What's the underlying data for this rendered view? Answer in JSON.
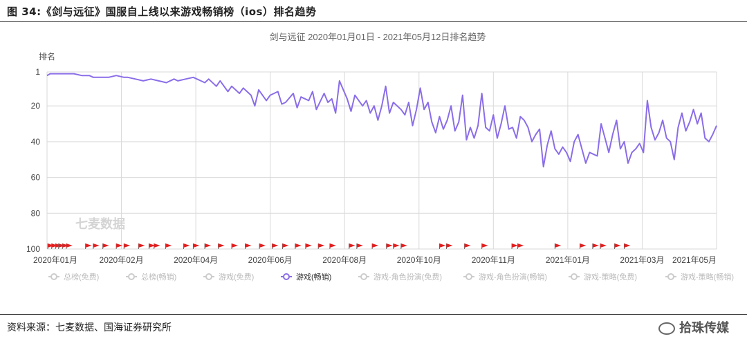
{
  "caption": "图 34:《剑与远征》国服自上线以来游戏畅销榜（ios）排名趋势",
  "source": "资料来源：七麦数据、国海证券研究所",
  "watermark": {
    "text": "拾珠传媒",
    "chart_text": "七麦数据"
  },
  "colors": {
    "series": "#8a6de9",
    "flag": "#e41e1e",
    "grid": "#d9d9d9",
    "legend_inactive": "#cccccc"
  },
  "chart_data": {
    "type": "line",
    "title": "剑与远征 2020年01月01日 - 2021年05月12日排名趋势",
    "ylabel": "排名",
    "y_reversed": true,
    "ylim": [
      1,
      100
    ],
    "y_ticks": [
      "1",
      "20",
      "40",
      "60",
      "80",
      "100"
    ],
    "x_ticks": [
      "2020年01月",
      "2020年02月",
      "2020年04月",
      "2020年06月",
      "2020年08月",
      "2020年10月",
      "2020年11月",
      "2021年01月",
      "2021年03月",
      "2021年05月"
    ],
    "legend": [
      {
        "label": "总榜(免费)",
        "active": false
      },
      {
        "label": "总榜(畅销)",
        "active": false
      },
      {
        "label": "游戏(免费)",
        "active": false
      },
      {
        "label": "游戏(畅销)",
        "active": true
      },
      {
        "label": "游戏-角色扮演(免费)",
        "active": false
      },
      {
        "label": "游戏-角色扮演(畅销)",
        "active": false
      },
      {
        "label": "游戏-策略(免费)",
        "active": false
      },
      {
        "label": "游戏-策略(畅销)",
        "active": false
      }
    ],
    "series": [
      {
        "name": "游戏(畅销)",
        "points": [
          [
            0,
            3
          ],
          [
            0.08,
            2
          ],
          [
            0.15,
            2
          ],
          [
            0.3,
            2
          ],
          [
            0.45,
            2
          ],
          [
            0.6,
            2
          ],
          [
            0.7,
            2
          ],
          [
            0.9,
            3
          ],
          [
            1.0,
            3
          ],
          [
            1.1,
            3
          ],
          [
            1.2,
            4
          ],
          [
            1.4,
            4
          ],
          [
            1.6,
            4
          ],
          [
            1.8,
            3
          ],
          [
            2.0,
            4
          ],
          [
            2.1,
            4
          ],
          [
            2.3,
            5
          ],
          [
            2.5,
            6
          ],
          [
            2.7,
            5
          ],
          [
            2.9,
            6
          ],
          [
            3.1,
            7
          ],
          [
            3.3,
            5
          ],
          [
            3.4,
            6
          ],
          [
            3.6,
            5
          ],
          [
            3.8,
            4
          ],
          [
            4.0,
            6
          ],
          [
            4.1,
            7
          ],
          [
            4.2,
            5
          ],
          [
            4.4,
            9
          ],
          [
            4.5,
            6
          ],
          [
            4.7,
            12
          ],
          [
            4.8,
            9
          ],
          [
            5.0,
            13
          ],
          [
            5.1,
            10
          ],
          [
            5.3,
            14
          ],
          [
            5.4,
            20
          ],
          [
            5.5,
            11
          ],
          [
            5.7,
            17
          ],
          [
            5.8,
            14
          ],
          [
            6.0,
            12
          ],
          [
            6.1,
            19
          ],
          [
            6.2,
            18
          ],
          [
            6.4,
            13
          ],
          [
            6.5,
            21
          ],
          [
            6.6,
            15
          ],
          [
            6.8,
            17
          ],
          [
            6.9,
            12
          ],
          [
            7.0,
            22
          ],
          [
            7.2,
            13
          ],
          [
            7.3,
            18
          ],
          [
            7.4,
            16
          ],
          [
            7.5,
            24
          ],
          [
            7.6,
            6
          ],
          [
            7.8,
            16
          ],
          [
            7.9,
            23
          ],
          [
            8.0,
            14
          ],
          [
            8.2,
            20
          ],
          [
            8.3,
            17
          ],
          [
            8.4,
            24
          ],
          [
            8.5,
            20
          ],
          [
            8.6,
            28
          ],
          [
            8.7,
            20
          ],
          [
            8.8,
            9
          ],
          [
            8.9,
            24
          ],
          [
            9.0,
            18
          ],
          [
            9.2,
            22
          ],
          [
            9.3,
            25
          ],
          [
            9.4,
            18
          ],
          [
            9.5,
            31
          ],
          [
            9.6,
            22
          ],
          [
            9.7,
            10
          ],
          [
            9.8,
            22
          ],
          [
            9.9,
            18
          ],
          [
            10.0,
            29
          ],
          [
            10.1,
            35
          ],
          [
            10.2,
            26
          ],
          [
            10.3,
            33
          ],
          [
            10.4,
            28
          ],
          [
            10.5,
            20
          ],
          [
            10.6,
            34
          ],
          [
            10.7,
            29
          ],
          [
            10.8,
            14
          ],
          [
            10.9,
            39
          ],
          [
            11.0,
            32
          ],
          [
            11.1,
            38
          ],
          [
            11.2,
            31
          ],
          [
            11.3,
            13
          ],
          [
            11.4,
            32
          ],
          [
            11.5,
            34
          ],
          [
            11.6,
            25
          ],
          [
            11.7,
            38
          ],
          [
            11.8,
            30
          ],
          [
            11.9,
            20
          ],
          [
            12.0,
            33
          ],
          [
            12.1,
            32
          ],
          [
            12.2,
            38
          ],
          [
            12.3,
            26
          ],
          [
            12.4,
            28
          ],
          [
            12.5,
            32
          ],
          [
            12.6,
            40
          ],
          [
            12.7,
            36
          ],
          [
            12.8,
            33
          ],
          [
            12.9,
            54
          ],
          [
            13.0,
            42
          ],
          [
            13.1,
            34
          ],
          [
            13.2,
            44
          ],
          [
            13.3,
            47
          ],
          [
            13.4,
            43
          ],
          [
            13.5,
            46
          ],
          [
            13.6,
            51
          ],
          [
            13.7,
            40
          ],
          [
            13.8,
            36
          ],
          [
            13.9,
            44
          ],
          [
            14.0,
            52
          ],
          [
            14.1,
            46
          ],
          [
            14.2,
            47
          ],
          [
            14.3,
            48
          ],
          [
            14.4,
            30
          ],
          [
            14.5,
            38
          ],
          [
            14.6,
            46
          ],
          [
            14.7,
            36
          ],
          [
            14.8,
            28
          ],
          [
            14.9,
            44
          ],
          [
            15.0,
            40
          ],
          [
            15.1,
            52
          ],
          [
            15.2,
            46
          ],
          [
            15.3,
            44
          ],
          [
            15.4,
            41
          ],
          [
            15.5,
            46
          ],
          [
            15.6,
            17
          ],
          [
            15.7,
            32
          ],
          [
            15.8,
            39
          ],
          [
            15.9,
            35
          ],
          [
            16.0,
            28
          ],
          [
            16.1,
            38
          ],
          [
            16.2,
            40
          ],
          [
            16.3,
            50
          ],
          [
            16.4,
            32
          ],
          [
            16.5,
            24
          ],
          [
            16.6,
            34
          ],
          [
            16.7,
            29
          ],
          [
            16.8,
            22
          ],
          [
            16.9,
            30
          ],
          [
            17.0,
            24
          ],
          [
            17.1,
            38
          ],
          [
            17.2,
            40
          ],
          [
            17.3,
            36
          ],
          [
            17.4,
            31
          ]
        ]
      }
    ],
    "markers": {
      "type": "flag",
      "x": [
        0.02,
        0.12,
        0.22,
        0.3,
        0.4,
        0.5,
        1.0,
        1.2,
        1.45,
        1.8,
        2.0,
        2.38,
        2.65,
        2.78,
        3.08,
        3.55,
        3.8,
        4.1,
        4.45,
        4.8,
        5.15,
        5.52,
        5.85,
        6.12,
        6.45,
        6.72,
        7.05,
        7.35,
        7.85,
        8.05,
        8.45,
        8.82,
        9.0,
        9.2,
        10.2,
        10.38,
        10.85,
        11.3,
        12.08,
        12.23,
        13.2,
        13.85,
        14.18,
        14.38,
        14.75,
        15.0
      ]
    },
    "months": 17.4
  }
}
